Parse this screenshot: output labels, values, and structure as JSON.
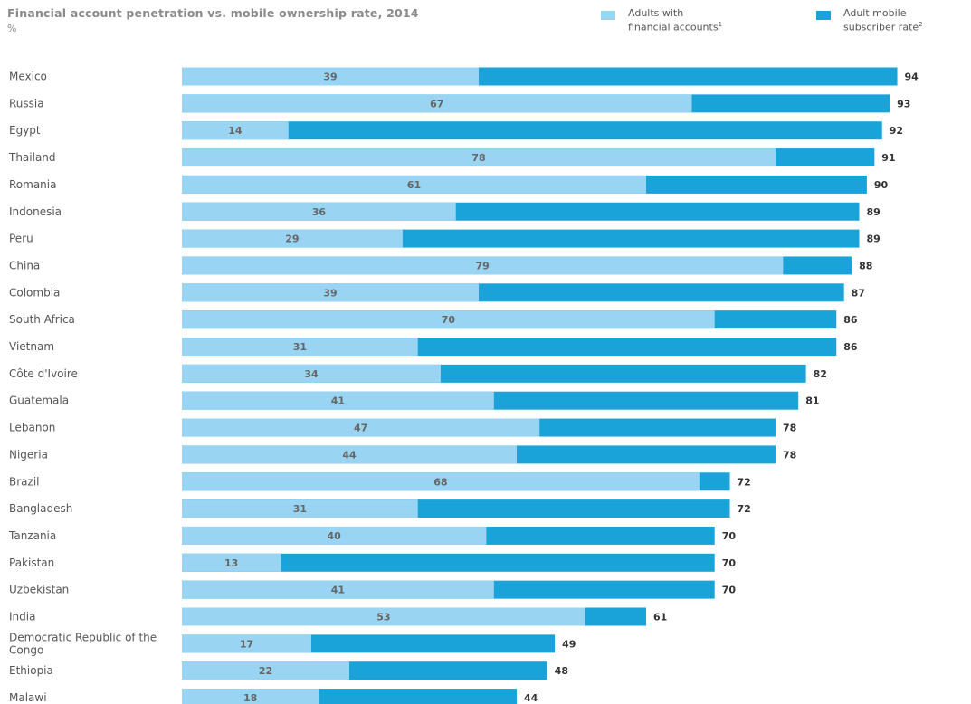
{
  "title": "Financial account penetration vs. mobile ownership rate, 2014",
  "unit": "%",
  "legend": [
    {
      "line1": "Adults with",
      "line2": "financial accounts",
      "sup": "1",
      "color": "#99d4f2"
    },
    {
      "line1": "Adult mobile",
      "line2": "subscriber rate",
      "sup": "2",
      "color": "#1aa3d9"
    }
  ],
  "chart_data": {
    "type": "bar",
    "orientation": "horizontal",
    "overlay": true,
    "categories": [
      "Mexico",
      "Russia",
      "Egypt",
      "Thailand",
      "Romania",
      "Indonesia",
      "Peru",
      "China",
      "Colombia",
      "South Africa",
      "Vietnam",
      "Côte d'Ivoire",
      "Guatemala",
      "Lebanon",
      "Nigeria",
      "Brazil",
      "Bangladesh",
      "Tanzania",
      "Pakistan",
      "Uzbekistan",
      "India",
      "Democratic Republic of the Congo",
      "Ethiopia",
      "Malawi"
    ],
    "series": [
      {
        "name": "Adults with financial accounts",
        "values": [
          39,
          67,
          14,
          78,
          61,
          36,
          29,
          79,
          39,
          70,
          31,
          34,
          41,
          47,
          44,
          68,
          31,
          40,
          13,
          41,
          53,
          17,
          22,
          18
        ]
      },
      {
        "name": "Adult mobile subscriber rate",
        "values": [
          94,
          93,
          92,
          91,
          90,
          89,
          89,
          88,
          87,
          86,
          86,
          82,
          81,
          78,
          78,
          72,
          72,
          70,
          70,
          70,
          61,
          49,
          48,
          44
        ]
      }
    ],
    "xlim": [
      0,
      100
    ],
    "colors": {
      "accounts": "#99d4f2",
      "mobile": "#1aa3d9",
      "inner_label": "#666666",
      "outer_label": "#333333",
      "category_label": "#555555"
    }
  }
}
